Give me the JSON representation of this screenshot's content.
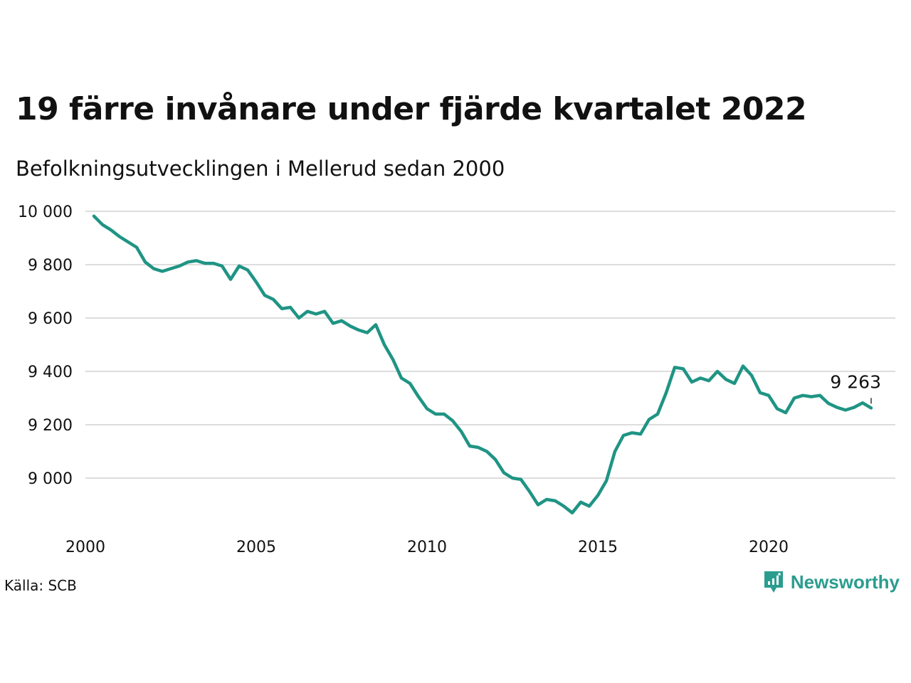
{
  "chart_data": {
    "type": "line",
    "title": "19 färre invånare under fjärde kvartalet 2022",
    "subtitle": "Befolkningsutvecklingen i Mellerud sedan 2000",
    "source": "Källa: SCB",
    "xlim": [
      2000.0,
      2023.0
    ],
    "ylim": [
      8850,
      10000
    ],
    "y_ticks": [
      {
        "value": 10000,
        "label": "10 000"
      },
      {
        "value": 9800,
        "label": "9 800"
      },
      {
        "value": 9600,
        "label": "9 600"
      },
      {
        "value": 9400,
        "label": "9 400"
      },
      {
        "value": 9200,
        "label": "9 200"
      },
      {
        "value": 9000,
        "label": "9 000"
      }
    ],
    "x_ticks": [
      {
        "value": 2000,
        "label": "2000"
      },
      {
        "value": 2005,
        "label": "2005"
      },
      {
        "value": 2010,
        "label": "2010"
      },
      {
        "value": 2015,
        "label": "2015"
      },
      {
        "value": 2020,
        "label": "2020"
      }
    ],
    "grid": true,
    "line_color": "#1f9484",
    "end_label": "9 263",
    "series": [
      {
        "x": [
          2000.25,
          2000.5,
          2000.75,
          2001.0,
          2001.25,
          2001.5,
          2001.75,
          2002.0,
          2002.25,
          2002.5,
          2002.75,
          2003.0,
          2003.25,
          2003.5,
          2003.75,
          2004.0,
          2004.25,
          2004.5,
          2004.75,
          2005.0,
          2005.25,
          2005.5,
          2005.75,
          2006.0,
          2006.25,
          2006.5,
          2006.75,
          2007.0,
          2007.25,
          2007.5,
          2007.75,
          2008.0,
          2008.25,
          2008.5,
          2008.75,
          2009.0,
          2009.25,
          2009.5,
          2009.75,
          2010.0,
          2010.25,
          2010.5,
          2010.75,
          2011.0,
          2011.25,
          2011.5,
          2011.75,
          2012.0,
          2012.25,
          2012.5,
          2012.75,
          2013.0,
          2013.25,
          2013.5,
          2013.75,
          2014.0,
          2014.25,
          2014.5,
          2014.75,
          2015.0,
          2015.25,
          2015.5,
          2015.75,
          2016.0,
          2016.25,
          2016.5,
          2016.75,
          2017.0,
          2017.25,
          2017.5,
          2017.75,
          2018.0,
          2018.25,
          2018.5,
          2018.75,
          2019.0,
          2019.25,
          2019.5,
          2019.75,
          2020.0,
          2020.25,
          2020.5,
          2020.75,
          2021.0,
          2021.25,
          2021.5,
          2021.75,
          2022.0,
          2022.25,
          2022.5,
          2022.75,
          2023.0
        ],
        "y": [
          9982,
          9950,
          9930,
          9905,
          9885,
          9865,
          9810,
          9785,
          9775,
          9785,
          9795,
          9810,
          9815,
          9805,
          9805,
          9795,
          9745,
          9795,
          9780,
          9735,
          9685,
          9670,
          9635,
          9640,
          9600,
          9625,
          9615,
          9625,
          9580,
          9590,
          9570,
          9555,
          9545,
          9575,
          9500,
          9445,
          9375,
          9355,
          9305,
          9260,
          9240,
          9240,
          9215,
          9175,
          9120,
          9115,
          9100,
          9070,
          9020,
          9000,
          8995,
          8950,
          8900,
          8920,
          8915,
          8895,
          8870,
          8910,
          8895,
          8935,
          8990,
          9100,
          9160,
          9170,
          9165,
          9220,
          9240,
          9320,
          9415,
          9410,
          9360,
          9375,
          9365,
          9400,
          9370,
          9355,
          9420,
          9385,
          9320,
          9310,
          9260,
          9245,
          9300,
          9310,
          9305,
          9310,
          9280,
          9265,
          9255,
          9265,
          9282,
          9263
        ]
      }
    ]
  },
  "brand": {
    "name": "Newsworthy",
    "icon": "bar-chart-icon"
  }
}
